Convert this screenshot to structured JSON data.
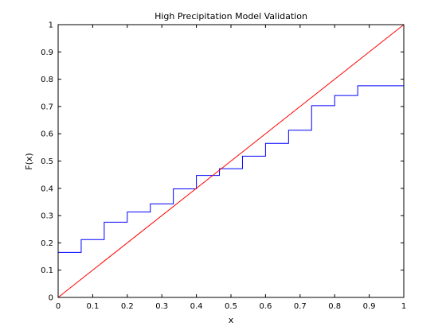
{
  "chart_data": {
    "type": "line",
    "title": "High Precipitation Model Validation",
    "xlabel": "x",
    "ylabel": "F(x)",
    "xlim": [
      0,
      1
    ],
    "ylim": [
      0,
      1
    ],
    "grid": false,
    "xticks": [
      "0",
      "0.1",
      "0.2",
      "0.3",
      "0.4",
      "0.5",
      "0.6",
      "0.7",
      "0.8",
      "0.9",
      "1"
    ],
    "yticks": [
      "0",
      "0.1",
      "0.2",
      "0.3",
      "0.4",
      "0.5",
      "0.6",
      "0.7",
      "0.8",
      "0.9",
      "1"
    ],
    "series": [
      {
        "kind": "step",
        "color": "#0000ff",
        "x": [
          0,
          0.0667,
          0.1333,
          0.2,
          0.2667,
          0.3333,
          0.4,
          0.4667,
          0.5333,
          0.6,
          0.6667,
          0.7333,
          0.8,
          0.8667,
          1.0
        ],
        "y": [
          0.165,
          0.212,
          0.276,
          0.313,
          0.343,
          0.398,
          0.447,
          0.472,
          0.518,
          0.565,
          0.613,
          0.703,
          0.74,
          0.776,
          0.776
        ]
      },
      {
        "kind": "line",
        "color": "#ff0000",
        "x": [
          0,
          1
        ],
        "y": [
          0,
          1
        ]
      }
    ]
  }
}
